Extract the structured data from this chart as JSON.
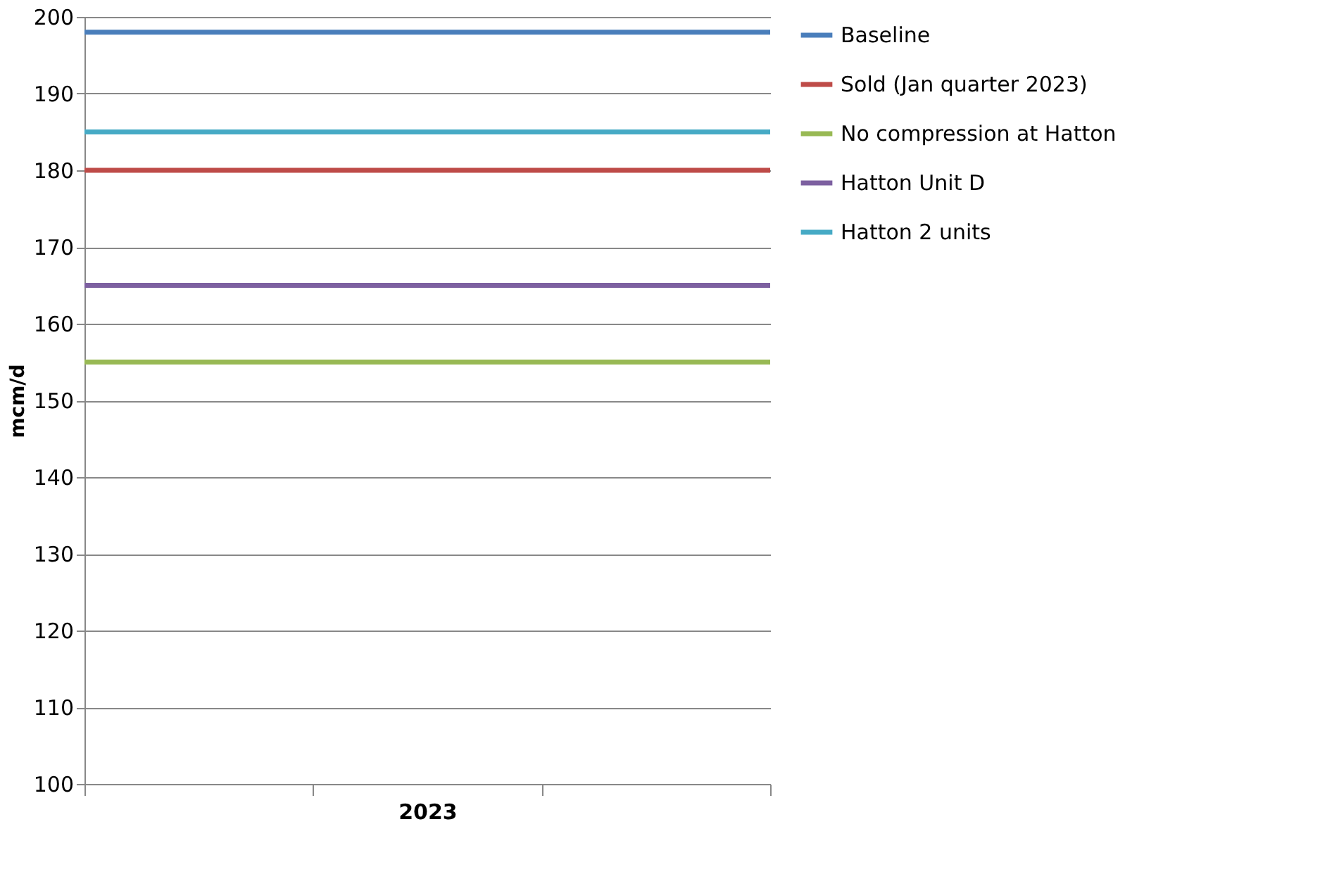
{
  "chart_data": {
    "type": "line",
    "xlabel": "2023",
    "ylabel": "mcm/d",
    "categories": [
      null,
      null,
      null,
      null
    ],
    "series": [
      {
        "name": "Baseline",
        "color": "#4a7ebb",
        "values": [
          198,
          198,
          198,
          198
        ]
      },
      {
        "name": "Sold (Jan quarter 2023)",
        "color": "#be4b48",
        "values": [
          180,
          180,
          180,
          180
        ]
      },
      {
        "name": "No compression at Hatton",
        "color": "#98b954",
        "values": [
          155,
          155,
          155,
          155
        ]
      },
      {
        "name": "Hatton Unit D",
        "color": "#7d60a0",
        "values": [
          165,
          165,
          165,
          165
        ]
      },
      {
        "name": "Hatton 2 units",
        "color": "#46aac5",
        "values": [
          185,
          185,
          185,
          185
        ]
      }
    ],
    "ylim": [
      100,
      200
    ],
    "yticks": [
      100,
      110,
      120,
      130,
      140,
      150,
      160,
      170,
      180,
      190,
      200
    ],
    "grid": "y",
    "legend": "right",
    "tick_labels": "y",
    "marker": "none",
    "line_style": "solid"
  }
}
